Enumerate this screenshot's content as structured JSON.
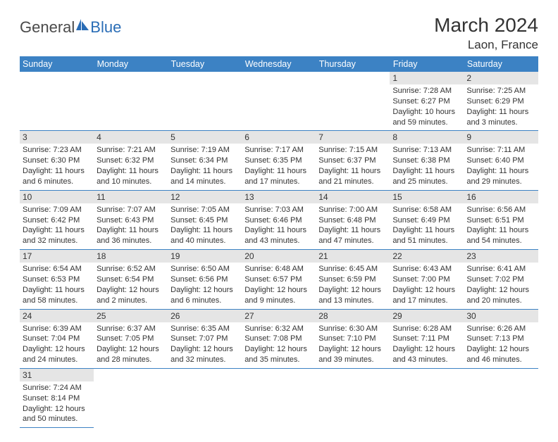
{
  "brand": {
    "part1": "General",
    "part2": "Blue"
  },
  "title": "March 2024",
  "location": "Laon, France",
  "colors": {
    "header_bg": "#3c82c4",
    "header_text": "#ffffff",
    "daynum_bg": "#e5e5e5",
    "border": "#3c82c4",
    "brand_blue": "#2a6db6",
    "body_text": "#333333",
    "background": "#ffffff"
  },
  "dayNames": [
    "Sunday",
    "Monday",
    "Tuesday",
    "Wednesday",
    "Thursday",
    "Friday",
    "Saturday"
  ],
  "weeks": [
    [
      null,
      null,
      null,
      null,
      null,
      {
        "n": "1",
        "sunrise": "Sunrise: 7:28 AM",
        "sunset": "Sunset: 6:27 PM",
        "daylight1": "Daylight: 10 hours",
        "daylight2": "and 59 minutes."
      },
      {
        "n": "2",
        "sunrise": "Sunrise: 7:25 AM",
        "sunset": "Sunset: 6:29 PM",
        "daylight1": "Daylight: 11 hours",
        "daylight2": "and 3 minutes."
      }
    ],
    [
      {
        "n": "3",
        "sunrise": "Sunrise: 7:23 AM",
        "sunset": "Sunset: 6:30 PM",
        "daylight1": "Daylight: 11 hours",
        "daylight2": "and 6 minutes."
      },
      {
        "n": "4",
        "sunrise": "Sunrise: 7:21 AM",
        "sunset": "Sunset: 6:32 PM",
        "daylight1": "Daylight: 11 hours",
        "daylight2": "and 10 minutes."
      },
      {
        "n": "5",
        "sunrise": "Sunrise: 7:19 AM",
        "sunset": "Sunset: 6:34 PM",
        "daylight1": "Daylight: 11 hours",
        "daylight2": "and 14 minutes."
      },
      {
        "n": "6",
        "sunrise": "Sunrise: 7:17 AM",
        "sunset": "Sunset: 6:35 PM",
        "daylight1": "Daylight: 11 hours",
        "daylight2": "and 17 minutes."
      },
      {
        "n": "7",
        "sunrise": "Sunrise: 7:15 AM",
        "sunset": "Sunset: 6:37 PM",
        "daylight1": "Daylight: 11 hours",
        "daylight2": "and 21 minutes."
      },
      {
        "n": "8",
        "sunrise": "Sunrise: 7:13 AM",
        "sunset": "Sunset: 6:38 PM",
        "daylight1": "Daylight: 11 hours",
        "daylight2": "and 25 minutes."
      },
      {
        "n": "9",
        "sunrise": "Sunrise: 7:11 AM",
        "sunset": "Sunset: 6:40 PM",
        "daylight1": "Daylight: 11 hours",
        "daylight2": "and 29 minutes."
      }
    ],
    [
      {
        "n": "10",
        "sunrise": "Sunrise: 7:09 AM",
        "sunset": "Sunset: 6:42 PM",
        "daylight1": "Daylight: 11 hours",
        "daylight2": "and 32 minutes."
      },
      {
        "n": "11",
        "sunrise": "Sunrise: 7:07 AM",
        "sunset": "Sunset: 6:43 PM",
        "daylight1": "Daylight: 11 hours",
        "daylight2": "and 36 minutes."
      },
      {
        "n": "12",
        "sunrise": "Sunrise: 7:05 AM",
        "sunset": "Sunset: 6:45 PM",
        "daylight1": "Daylight: 11 hours",
        "daylight2": "and 40 minutes."
      },
      {
        "n": "13",
        "sunrise": "Sunrise: 7:03 AM",
        "sunset": "Sunset: 6:46 PM",
        "daylight1": "Daylight: 11 hours",
        "daylight2": "and 43 minutes."
      },
      {
        "n": "14",
        "sunrise": "Sunrise: 7:00 AM",
        "sunset": "Sunset: 6:48 PM",
        "daylight1": "Daylight: 11 hours",
        "daylight2": "and 47 minutes."
      },
      {
        "n": "15",
        "sunrise": "Sunrise: 6:58 AM",
        "sunset": "Sunset: 6:49 PM",
        "daylight1": "Daylight: 11 hours",
        "daylight2": "and 51 minutes."
      },
      {
        "n": "16",
        "sunrise": "Sunrise: 6:56 AM",
        "sunset": "Sunset: 6:51 PM",
        "daylight1": "Daylight: 11 hours",
        "daylight2": "and 54 minutes."
      }
    ],
    [
      {
        "n": "17",
        "sunrise": "Sunrise: 6:54 AM",
        "sunset": "Sunset: 6:53 PM",
        "daylight1": "Daylight: 11 hours",
        "daylight2": "and 58 minutes."
      },
      {
        "n": "18",
        "sunrise": "Sunrise: 6:52 AM",
        "sunset": "Sunset: 6:54 PM",
        "daylight1": "Daylight: 12 hours",
        "daylight2": "and 2 minutes."
      },
      {
        "n": "19",
        "sunrise": "Sunrise: 6:50 AM",
        "sunset": "Sunset: 6:56 PM",
        "daylight1": "Daylight: 12 hours",
        "daylight2": "and 6 minutes."
      },
      {
        "n": "20",
        "sunrise": "Sunrise: 6:48 AM",
        "sunset": "Sunset: 6:57 PM",
        "daylight1": "Daylight: 12 hours",
        "daylight2": "and 9 minutes."
      },
      {
        "n": "21",
        "sunrise": "Sunrise: 6:45 AM",
        "sunset": "Sunset: 6:59 PM",
        "daylight1": "Daylight: 12 hours",
        "daylight2": "and 13 minutes."
      },
      {
        "n": "22",
        "sunrise": "Sunrise: 6:43 AM",
        "sunset": "Sunset: 7:00 PM",
        "daylight1": "Daylight: 12 hours",
        "daylight2": "and 17 minutes."
      },
      {
        "n": "23",
        "sunrise": "Sunrise: 6:41 AM",
        "sunset": "Sunset: 7:02 PM",
        "daylight1": "Daylight: 12 hours",
        "daylight2": "and 20 minutes."
      }
    ],
    [
      {
        "n": "24",
        "sunrise": "Sunrise: 6:39 AM",
        "sunset": "Sunset: 7:04 PM",
        "daylight1": "Daylight: 12 hours",
        "daylight2": "and 24 minutes."
      },
      {
        "n": "25",
        "sunrise": "Sunrise: 6:37 AM",
        "sunset": "Sunset: 7:05 PM",
        "daylight1": "Daylight: 12 hours",
        "daylight2": "and 28 minutes."
      },
      {
        "n": "26",
        "sunrise": "Sunrise: 6:35 AM",
        "sunset": "Sunset: 7:07 PM",
        "daylight1": "Daylight: 12 hours",
        "daylight2": "and 32 minutes."
      },
      {
        "n": "27",
        "sunrise": "Sunrise: 6:32 AM",
        "sunset": "Sunset: 7:08 PM",
        "daylight1": "Daylight: 12 hours",
        "daylight2": "and 35 minutes."
      },
      {
        "n": "28",
        "sunrise": "Sunrise: 6:30 AM",
        "sunset": "Sunset: 7:10 PM",
        "daylight1": "Daylight: 12 hours",
        "daylight2": "and 39 minutes."
      },
      {
        "n": "29",
        "sunrise": "Sunrise: 6:28 AM",
        "sunset": "Sunset: 7:11 PM",
        "daylight1": "Daylight: 12 hours",
        "daylight2": "and 43 minutes."
      },
      {
        "n": "30",
        "sunrise": "Sunrise: 6:26 AM",
        "sunset": "Sunset: 7:13 PM",
        "daylight1": "Daylight: 12 hours",
        "daylight2": "and 46 minutes."
      }
    ],
    [
      {
        "n": "31",
        "sunrise": "Sunrise: 7:24 AM",
        "sunset": "Sunset: 8:14 PM",
        "daylight1": "Daylight: 12 hours",
        "daylight2": "and 50 minutes."
      },
      null,
      null,
      null,
      null,
      null,
      null
    ]
  ]
}
